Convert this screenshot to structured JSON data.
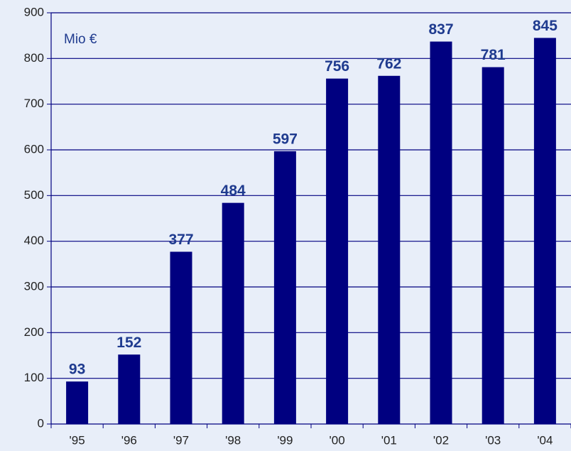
{
  "chart_data": {
    "type": "bar",
    "annotations": [
      "Mio €"
    ],
    "categories": [
      "'95",
      "'96",
      "'97",
      "'98",
      "'99",
      "'00",
      "'01",
      "'02",
      "'03",
      "'04"
    ],
    "values": [
      93,
      152,
      377,
      484,
      597,
      756,
      762,
      837,
      781,
      845
    ],
    "color": "#000080",
    "ylim": [
      0,
      900
    ],
    "yticks": [
      0,
      100,
      200,
      300,
      400,
      500,
      600,
      700,
      800,
      900
    ],
    "grid": true,
    "data_labels": true
  }
}
